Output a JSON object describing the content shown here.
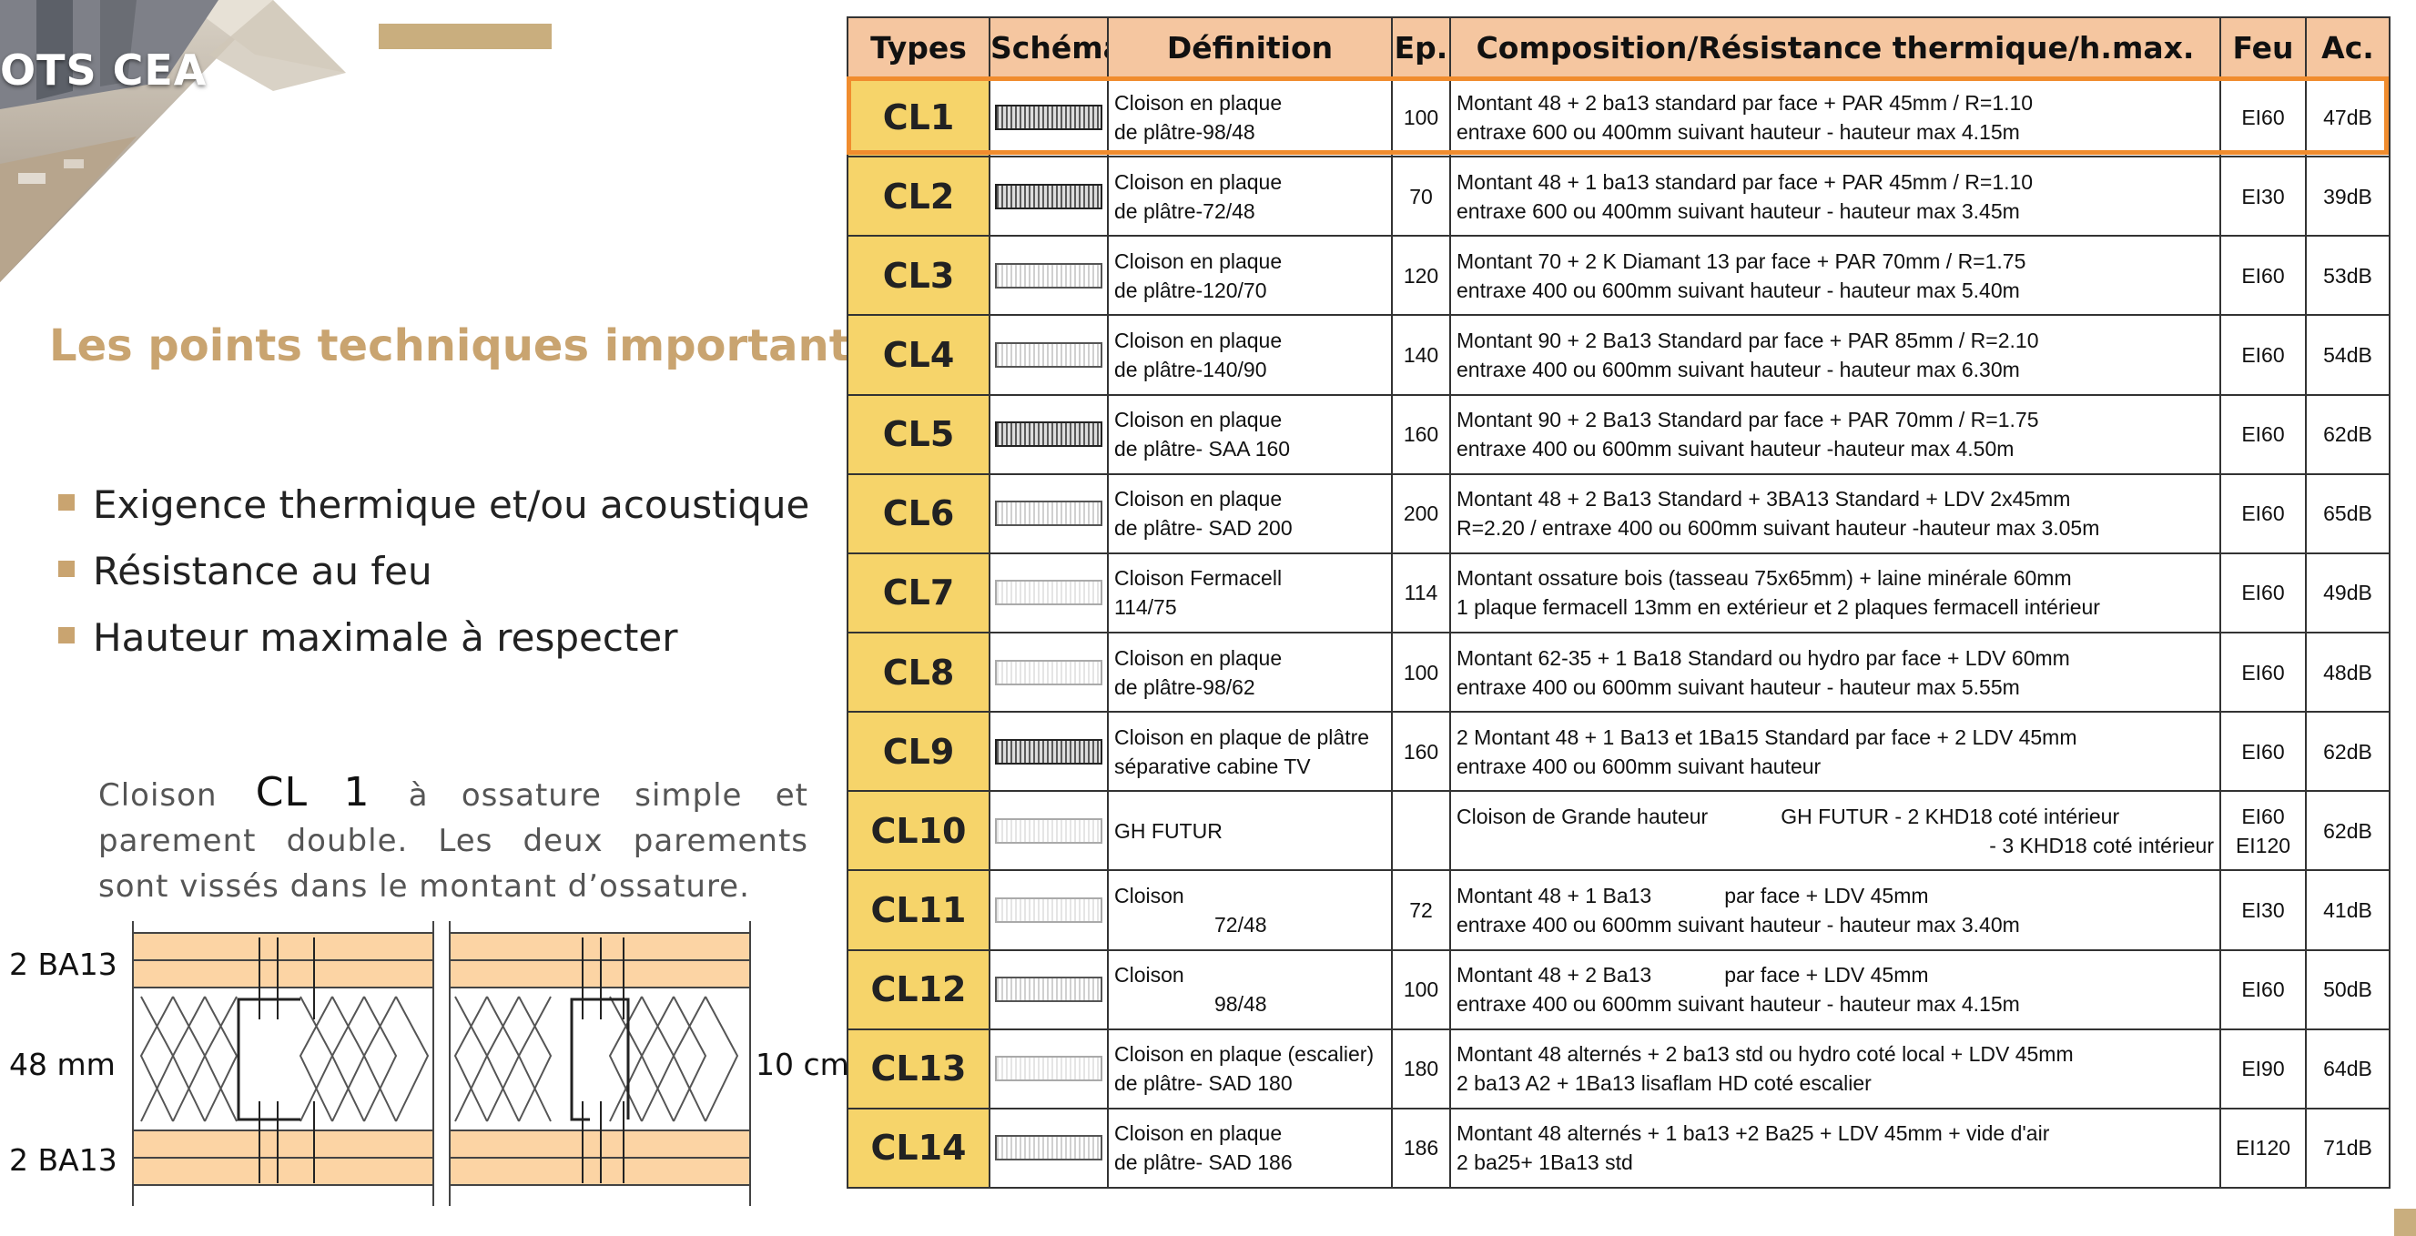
{
  "header": {
    "banner_text": "OTS CEA"
  },
  "section_title": "Les points techniques importants",
  "bullets": [
    "Exigence thermique et/ou acoustique",
    "Résistance au feu",
    "Hauteur maximale à respecter"
  ],
  "description": {
    "before": "Cloison",
    "code": "CL 1",
    "after": "à ossature simple et parement double. Les deux parements sont vissés dans le montant d’ossature."
  },
  "diagram": {
    "label_top": "2 BA13",
    "label_middle": "48 mm",
    "label_bottom": "2 BA13",
    "label_right": "10 cm"
  },
  "table": {
    "headers": {
      "types": "Types",
      "schema": "Schéma",
      "definition": "Définition",
      "ep": "Ep.",
      "composition": "Composition/Résistance thermique/h.max.",
      "feu": "Feu",
      "ac": "Ac."
    },
    "rows": [
      {
        "type": "CL1",
        "def1": "Cloison en plaque",
        "def2": "de plâtre-98/48",
        "ep": "100",
        "comp1": "Montant 48 + 2 ba13 standard par face + PAR 45mm / R=1.10",
        "comp2": "entraxe 600 ou 400mm suivant hauteur - hauteur max 4.15m",
        "feu": "EI60",
        "ac": "47dB"
      },
      {
        "type": "CL2",
        "def1": "Cloison en plaque",
        "def2": "de plâtre-72/48",
        "ep": "70",
        "comp1": "Montant 48 + 1 ba13 standard par face + PAR 45mm / R=1.10",
        "comp2": "entraxe 600 ou 400mm suivant hauteur - hauteur max 3.45m",
        "feu": "EI30",
        "ac": "39dB"
      },
      {
        "type": "CL3",
        "def1": "Cloison en plaque",
        "def2": "de plâtre-120/70",
        "ep": "120",
        "comp1": "Montant 70 + 2 K Diamant 13 par face + PAR 70mm / R=1.75",
        "comp2": "entraxe 400 ou 600mm suivant hauteur - hauteur max 5.40m",
        "feu": "EI60",
        "ac": "53dB"
      },
      {
        "type": "CL4",
        "def1": "Cloison en plaque",
        "def2": "de plâtre-140/90",
        "ep": "140",
        "comp1": "Montant 90 + 2 Ba13 Standard par face + PAR 85mm / R=2.10",
        "comp2": "entraxe 400 ou 600mm suivant hauteur - hauteur max 6.30m",
        "feu": "EI60",
        "ac": "54dB"
      },
      {
        "type": "CL5",
        "def1": "Cloison en plaque",
        "def2": "de plâtre- SAA 160",
        "ep": "160",
        "comp1": "Montant 90 + 2 Ba13 Standard par face + PAR 70mm / R=1.75",
        "comp2": "entraxe 400 ou 600mm suivant hauteur -hauteur max 4.50m",
        "feu": "EI60",
        "ac": "62dB"
      },
      {
        "type": "CL6",
        "def1": "Cloison en plaque",
        "def2": "de plâtre- SAD 200",
        "ep": "200",
        "comp1": "Montant 48 + 2 Ba13 Standard + 3BA13 Standard + LDV 2x45mm",
        "comp2": "R=2.20 / entraxe 400 ou 600mm suivant hauteur -hauteur max 3.05m",
        "feu": "EI60",
        "ac": "65dB"
      },
      {
        "type": "CL7",
        "def1": "Cloison Fermacell",
        "def2": "114/75",
        "ep": "114",
        "comp1": "Montant ossature bois (tasseau 75x65mm) + laine minérale 60mm",
        "comp2": "1 plaque fermacell 13mm en extérieur et 2 plaques fermacell intérieur",
        "feu": "EI60",
        "ac": "49dB"
      },
      {
        "type": "CL8",
        "def1": "Cloison en plaque",
        "def2": "de plâtre-98/62",
        "ep": "100",
        "comp1": "Montant 62-35 + 1 Ba18 Standard ou hydro par face + LDV 60mm",
        "comp2": "entraxe 400 ou 600mm suivant hauteur - hauteur max 5.55m",
        "feu": "EI60",
        "ac": "48dB"
      },
      {
        "type": "CL9",
        "def1": "Cloison en plaque de plâtre",
        "def2": "séparative cabine TV",
        "ep": "160",
        "comp1": "2 Montant 48 + 1 Ba13 et 1Ba15 Standard par face + 2 LDV 45mm",
        "comp2": "entraxe 400 ou 600mm suivant hauteur",
        "feu": "EI60",
        "ac": "62dB"
      },
      {
        "type": "CL10",
        "def1": "GH FUTUR",
        "def2": "",
        "ep": "",
        "comp1a": "Cloison de Grande hauteur",
        "comp1b": "GH FUTUR - 2 KHD18 coté intérieur",
        "comp2": "- 3 KHD18 coté intérieur",
        "feu1": "EI60",
        "feu2": "EI120",
        "ac": "62dB"
      },
      {
        "type": "CL11",
        "def1": "Cloison",
        "def2": "72/48",
        "ep": "72",
        "comp1a": "Montant 48 + 1 Ba13",
        "comp1b": "par face + LDV 45mm",
        "comp2": "entraxe 400 ou 600mm suivant hauteur - hauteur max 3.40m",
        "feu": "EI30",
        "ac": "41dB"
      },
      {
        "type": "CL12",
        "def1": "Cloison",
        "def2": "98/48",
        "ep": "100",
        "comp1a": "Montant 48 + 2 Ba13",
        "comp1b": "par face + LDV 45mm",
        "comp2": "entraxe 400 ou 600mm suivant hauteur - hauteur max 4.15m",
        "feu": "EI60",
        "ac": "50dB"
      },
      {
        "type": "CL13",
        "def1": "Cloison en plaque (escalier)",
        "def2": "de plâtre- SAD 180",
        "ep": "180",
        "comp1": "Montant 48 alternés + 2 ba13 std ou hydro coté local + LDV 45mm",
        "comp2": "2 ba13 A2 + 1Ba13 lisaflam HD coté escalier",
        "feu": "EI90",
        "ac": "64dB"
      },
      {
        "type": "CL14",
        "def1": "Cloison en plaque",
        "def2": "de plâtre- SAD 186",
        "ep": "186",
        "comp1": "Montant 48 alternés + 1 ba13 +2 Ba25 + LDV 45mm + vide d'air",
        "comp2": "2 ba25+ 1Ba13 std",
        "feu": "EI120",
        "ac": "71dB"
      }
    ]
  },
  "colors": {
    "gold": "#c9a470",
    "header_bg": "#f5c6a0",
    "type_bg": "#f6d46a",
    "highlight": "#f08c2e"
  }
}
